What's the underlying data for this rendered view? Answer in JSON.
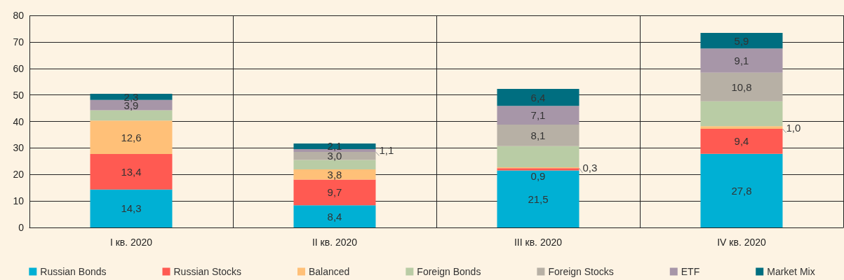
{
  "chart_data": {
    "type": "bar",
    "stacked": true,
    "categories": [
      "I кв. 2020",
      "II кв. 2020",
      "III кв. 2020",
      "IV кв. 2020"
    ],
    "series": [
      {
        "name": "Russian Bonds",
        "color": "#00b0d4",
        "values": [
          14.3,
          8.4,
          21.5,
          27.8
        ],
        "value_labels": [
          "14,3",
          "8,4",
          "21,5",
          "27,8"
        ]
      },
      {
        "name": "Russian Stocks",
        "color": "#ff5a52",
        "values": [
          13.4,
          9.7,
          0.9,
          9.4
        ],
        "value_labels": [
          "13,4",
          "9,7",
          "0,9",
          "9,4"
        ]
      },
      {
        "name": "Balanced",
        "color": "#ffc078",
        "values": [
          12.6,
          3.8,
          0.3,
          1.0
        ],
        "value_labels": [
          "12,6",
          "3,8",
          "0,3",
          "1,0"
        ]
      },
      {
        "name": "Foreign Bonds",
        "color": "#b9cca5",
        "values": [
          3.9,
          3.6,
          8.0,
          9.4
        ],
        "value_labels": [
          null,
          null,
          null,
          null
        ]
      },
      {
        "name": "Foreign Stocks",
        "color": "#b7b0a5",
        "values": [
          null,
          3.0,
          8.1,
          10.8
        ],
        "value_labels": [
          null,
          "3,0",
          "8,1",
          "10,8"
        ]
      },
      {
        "name": "ETF",
        "color": "#a796a8",
        "values": [
          3.9,
          1.1,
          7.1,
          9.1
        ],
        "value_labels": [
          "3,9",
          "1,1",
          "7,1",
          "9,1"
        ]
      },
      {
        "name": "Market Mix",
        "color": "#006e80",
        "values": [
          2.3,
          2.1,
          6.4,
          5.9
        ],
        "value_labels": [
          "2,3",
          "2,1",
          "6,4",
          "5,9"
        ]
      }
    ],
    "ylim": [
      0,
      80
    ],
    "yticks": [
      0,
      10,
      20,
      30,
      40,
      50,
      60,
      70,
      80
    ],
    "grid": true,
    "legend": "bottom"
  }
}
